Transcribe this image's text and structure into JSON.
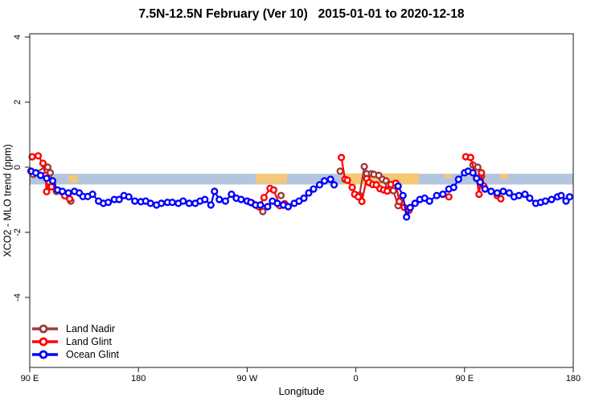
{
  "title": "7.5N-12.5N February (Ver 10)   2015-01-01 to 2020-12-18",
  "chart_data": {
    "type": "line",
    "marker": "open-circle",
    "title": "7.5N-12.5N February (Ver 10)   2015-01-01 to 2020-12-18",
    "xlabel": "Longitude",
    "ylabel": "XCO2 - MLO trend (ppm)",
    "background": "#ffffff",
    "grid": false,
    "legend_position": "bottom-left",
    "x_axis": {
      "note": "degrees east of 90E along axis, wrapping eastward",
      "range": [
        0,
        450
      ],
      "ticks": [
        {
          "pos": 0,
          "label": "90 E"
        },
        {
          "pos": 90,
          "label": "180"
        },
        {
          "pos": 180,
          "label": "90 W"
        },
        {
          "pos": 270,
          "label": "0"
        },
        {
          "pos": 360,
          "label": "90 E"
        },
        {
          "pos": 450,
          "label": "180"
        }
      ]
    },
    "y_axis": {
      "range": [
        -6.15,
        4.1
      ],
      "ticks": [
        {
          "pos": 4,
          "label": "4"
        },
        {
          "pos": 2,
          "label": "2"
        },
        {
          "pos": 0,
          "label": "0"
        },
        {
          "pos": -2,
          "label": "-2"
        },
        {
          "pos": -4,
          "label": "-4"
        }
      ]
    },
    "reference_bands": [
      {
        "name": "expected-range-band",
        "color": "#b4c5e0",
        "opacity": 1,
        "x_from": 0,
        "x_to": 450,
        "y_top": -0.2,
        "y_bottom": -0.53
      },
      {
        "name": "orange-flag-main",
        "color": "#f7c873",
        "opacity": 1,
        "x_from": 260,
        "x_to": 322,
        "y_top": -0.19,
        "y_bottom": -0.53
      },
      {
        "name": "orange-flag-west",
        "color": "#f7c873",
        "opacity": 0.9,
        "x_from": 32,
        "x_to": 40,
        "y_top": -0.24,
        "y_bottom": -0.48
      },
      {
        "name": "orange-flag-mid",
        "color": "#f7c873",
        "opacity": 0.95,
        "x_from": 187,
        "x_to": 213,
        "y_top": -0.2,
        "y_bottom": -0.5
      },
      {
        "name": "orange-flag-east1",
        "color": "#f7c873",
        "opacity": 0.9,
        "x_from": 343,
        "x_to": 349,
        "y_top": -0.2,
        "y_bottom": -0.34
      },
      {
        "name": "orange-flag-east2",
        "color": "#f7c873",
        "opacity": 0.9,
        "x_from": 389,
        "x_to": 396,
        "y_top": -0.2,
        "y_bottom": -0.36
      }
    ],
    "series": [
      {
        "name": "Land Nadir",
        "color": "#9e3b3b",
        "points": [
          [
            3,
            -0.22
          ],
          [
            13,
            0.02
          ],
          [
            15,
            0.0
          ],
          [
            17,
            -0.17
          ],
          [
            19,
            -0.54
          ],
          [
            22,
            -0.74
          ],
          [
            34,
            -1.04
          ],
          [
            193,
            -1.36
          ],
          [
            208,
            -0.87
          ],
          [
            257,
            -0.12
          ],
          [
            273,
            -0.86
          ],
          [
            277,
            0.02
          ],
          [
            279,
            -0.2
          ],
          [
            283,
            -0.2
          ],
          [
            285,
            -0.22
          ],
          [
            289,
            -0.25
          ],
          [
            292,
            -0.37
          ],
          [
            295,
            -0.42
          ],
          [
            297,
            -0.54
          ],
          [
            301,
            -0.72
          ],
          [
            305,
            -1.18
          ],
          [
            367,
            0.07
          ],
          [
            371,
            0.0
          ],
          [
            374,
            -0.28
          ]
        ]
      },
      {
        "name": "Land Glint",
        "color": "#ff0000",
        "points": [
          [
            2,
            0.32
          ],
          [
            7,
            0.35
          ],
          [
            11,
            0.12
          ],
          [
            13,
            -0.25
          ],
          [
            14,
            -0.75
          ],
          [
            16,
            -0.45
          ],
          [
            18,
            -0.6
          ],
          [
            29,
            -0.88
          ],
          [
            33,
            -0.97
          ],
          [
            184,
            -1.1
          ],
          [
            190,
            -1.22
          ],
          [
            194,
            -0.93
          ],
          [
            199,
            -0.65
          ],
          [
            202,
            -0.7
          ],
          [
            207,
            -1.18
          ],
          [
            211,
            -1.12
          ],
          [
            258,
            0.3
          ],
          [
            261,
            -0.37
          ],
          [
            263,
            -0.4
          ],
          [
            267,
            -0.62
          ],
          [
            269,
            -0.83
          ],
          [
            272,
            -0.91
          ],
          [
            275,
            -1.05
          ],
          [
            279,
            -0.35
          ],
          [
            281,
            -0.47
          ],
          [
            284,
            -0.53
          ],
          [
            287,
            -0.54
          ],
          [
            290,
            -0.66
          ],
          [
            293,
            -0.7
          ],
          [
            296,
            -0.73
          ],
          [
            299,
            -0.53
          ],
          [
            303,
            -0.49
          ],
          [
            306,
            -1.05
          ],
          [
            310,
            -1.23
          ],
          [
            314,
            -1.33
          ],
          [
            347,
            -0.91
          ],
          [
            361,
            0.32
          ],
          [
            365,
            0.3
          ],
          [
            370,
            -0.34
          ],
          [
            372,
            -0.83
          ],
          [
            374,
            -0.17
          ],
          [
            376,
            -0.58
          ],
          [
            387,
            -0.87
          ],
          [
            390,
            -0.97
          ]
        ]
      },
      {
        "name": "Ocean Glint",
        "color": "#0000ff",
        "points": [
          [
            1,
            -0.12
          ],
          [
            5,
            -0.17
          ],
          [
            9,
            -0.25
          ],
          [
            14,
            -0.34
          ],
          [
            19,
            -0.42
          ],
          [
            23,
            -0.7
          ],
          [
            27,
            -0.74
          ],
          [
            32,
            -0.79
          ],
          [
            37,
            -0.74
          ],
          [
            41,
            -0.79
          ],
          [
            44,
            -0.9
          ],
          [
            48,
            -0.9
          ],
          [
            52,
            -0.83
          ],
          [
            57,
            -1.04
          ],
          [
            61,
            -1.11
          ],
          [
            65,
            -1.08
          ],
          [
            70,
            -0.99
          ],
          [
            74,
            -0.99
          ],
          [
            78,
            -0.87
          ],
          [
            82,
            -0.91
          ],
          [
            87,
            -1.04
          ],
          [
            92,
            -1.06
          ],
          [
            96,
            -1.04
          ],
          [
            100,
            -1.11
          ],
          [
            105,
            -1.16
          ],
          [
            109,
            -1.11
          ],
          [
            114,
            -1.08
          ],
          [
            118,
            -1.08
          ],
          [
            123,
            -1.11
          ],
          [
            127,
            -1.04
          ],
          [
            132,
            -1.11
          ],
          [
            137,
            -1.11
          ],
          [
            141,
            -1.04
          ],
          [
            145,
            -0.99
          ],
          [
            150,
            -1.16
          ],
          [
            153,
            -0.74
          ],
          [
            157,
            -0.99
          ],
          [
            162,
            -1.04
          ],
          [
            167,
            -0.83
          ],
          [
            171,
            -0.95
          ],
          [
            175,
            -0.99
          ],
          [
            180,
            -1.04
          ],
          [
            183,
            -1.08
          ],
          [
            187,
            -1.16
          ],
          [
            191,
            -1.16
          ],
          [
            197,
            -1.21
          ],
          [
            201,
            -1.04
          ],
          [
            205,
            -1.11
          ],
          [
            210,
            -1.16
          ],
          [
            214,
            -1.21
          ],
          [
            219,
            -1.11
          ],
          [
            223,
            -1.04
          ],
          [
            227,
            -0.95
          ],
          [
            231,
            -0.79
          ],
          [
            235,
            -0.67
          ],
          [
            240,
            -0.54
          ],
          [
            244,
            -0.42
          ],
          [
            249,
            -0.37
          ],
          [
            252,
            -0.54
          ],
          [
            305,
            -0.58
          ],
          [
            309,
            -0.87
          ],
          [
            312,
            -1.53
          ],
          [
            315,
            -1.24
          ],
          [
            319,
            -1.11
          ],
          [
            323,
            -0.99
          ],
          [
            327,
            -0.95
          ],
          [
            331,
            -1.04
          ],
          [
            337,
            -0.87
          ],
          [
            342,
            -0.83
          ],
          [
            347,
            -0.67
          ],
          [
            351,
            -0.62
          ],
          [
            355,
            -0.37
          ],
          [
            360,
            -0.17
          ],
          [
            363,
            -0.12
          ],
          [
            367,
            -0.17
          ],
          [
            370,
            -0.34
          ],
          [
            373,
            -0.46
          ],
          [
            377,
            -0.67
          ],
          [
            382,
            -0.74
          ],
          [
            387,
            -0.79
          ],
          [
            392,
            -0.74
          ],
          [
            397,
            -0.79
          ],
          [
            401,
            -0.91
          ],
          [
            405,
            -0.87
          ],
          [
            410,
            -0.83
          ],
          [
            414,
            -0.95
          ],
          [
            419,
            -1.11
          ],
          [
            423,
            -1.08
          ],
          [
            427,
            -1.04
          ],
          [
            432,
            -0.99
          ],
          [
            437,
            -0.91
          ],
          [
            440,
            -0.87
          ],
          [
            444,
            -1.04
          ],
          [
            447,
            -0.91
          ]
        ]
      }
    ]
  }
}
